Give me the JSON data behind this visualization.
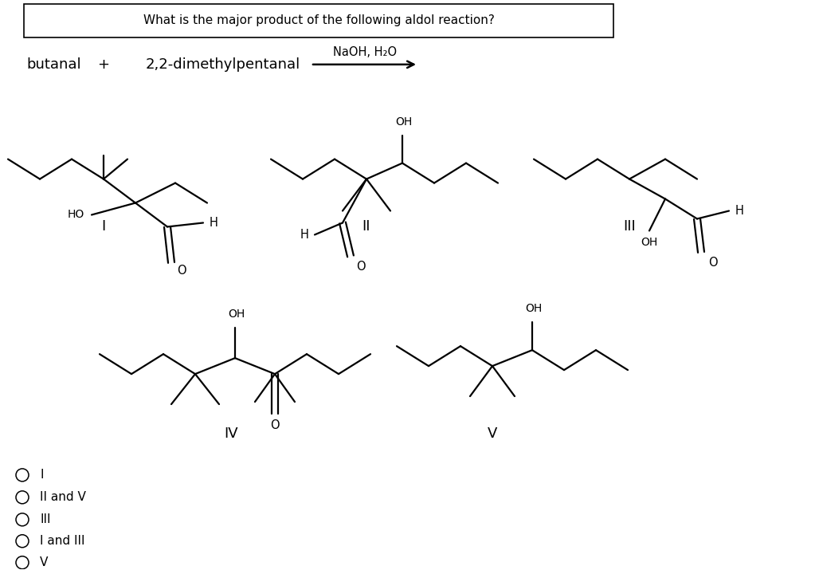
{
  "title": "What is the major product of the following aldol reaction?",
  "reagent": "NaOH, H₂O",
  "background": "#ffffff",
  "options": [
    "I",
    "II and V",
    "III",
    "I and III",
    "V"
  ],
  "title_fontsize": 11,
  "label_fontsize": 13,
  "bond_lw": 1.6
}
